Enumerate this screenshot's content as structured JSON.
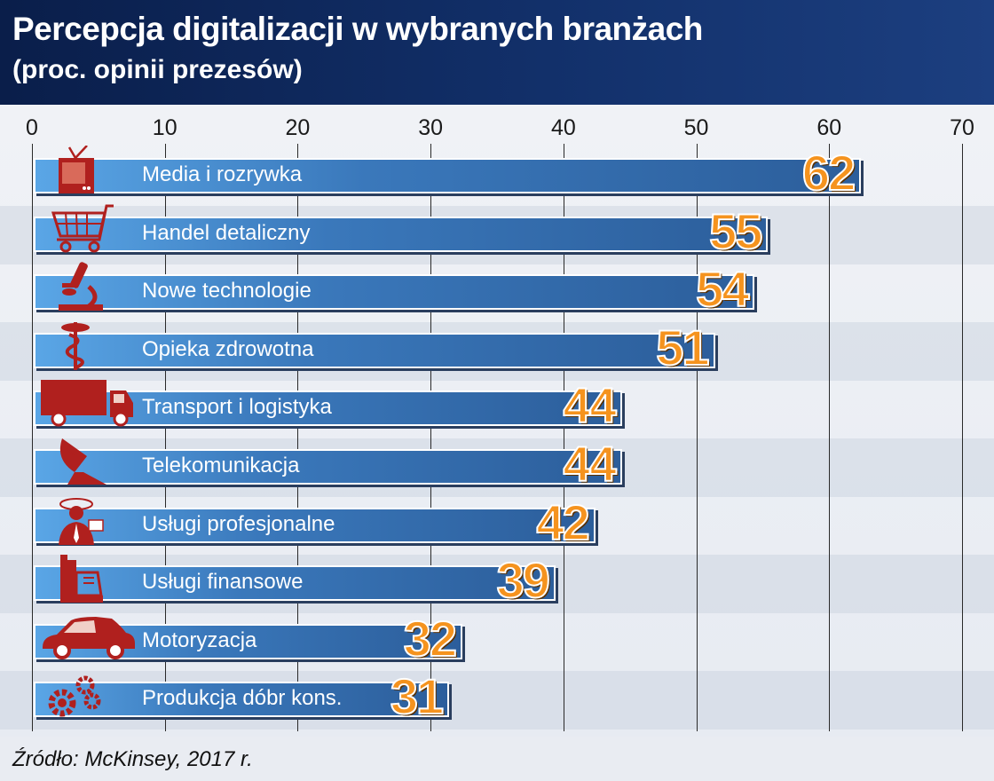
{
  "title": "Percepcja digitalizacji w wybranych branżach",
  "subtitle": "(proc. opinii prezesów)",
  "source": "Źródło: McKinsey, 2017 r.",
  "chart_data": {
    "type": "bar",
    "orientation": "horizontal",
    "title": "Percepcja digitalizacji w wybranych branżach",
    "subtitle": "(proc. opinii prezesów)",
    "xlim": [
      0,
      70
    ],
    "xticks": [
      0,
      10,
      20,
      30,
      40,
      50,
      60,
      70
    ],
    "grid": true,
    "categories": [
      "Media i rozrywka",
      "Handel detaliczny",
      "Nowe technologie",
      "Opieka zdrowotna",
      "Transport i logistyka",
      "Telekomunikacja",
      "Usługi profesjonalne",
      "Usługi finansowe",
      "Motoryzacja",
      "Produkcja dóbr kons."
    ],
    "values": [
      62,
      55,
      54,
      51,
      44,
      44,
      42,
      39,
      32,
      31
    ],
    "icons": [
      "tv-icon",
      "shopping-cart-icon",
      "microscope-icon",
      "caduceus-icon",
      "truck-icon",
      "satellite-dish-icon",
      "professional-icon",
      "cash-register-icon",
      "car-icon",
      "gears-icon"
    ],
    "colors": {
      "bar": "#3a78bb",
      "value": "#f5931e",
      "icon": "#b0201e"
    }
  }
}
